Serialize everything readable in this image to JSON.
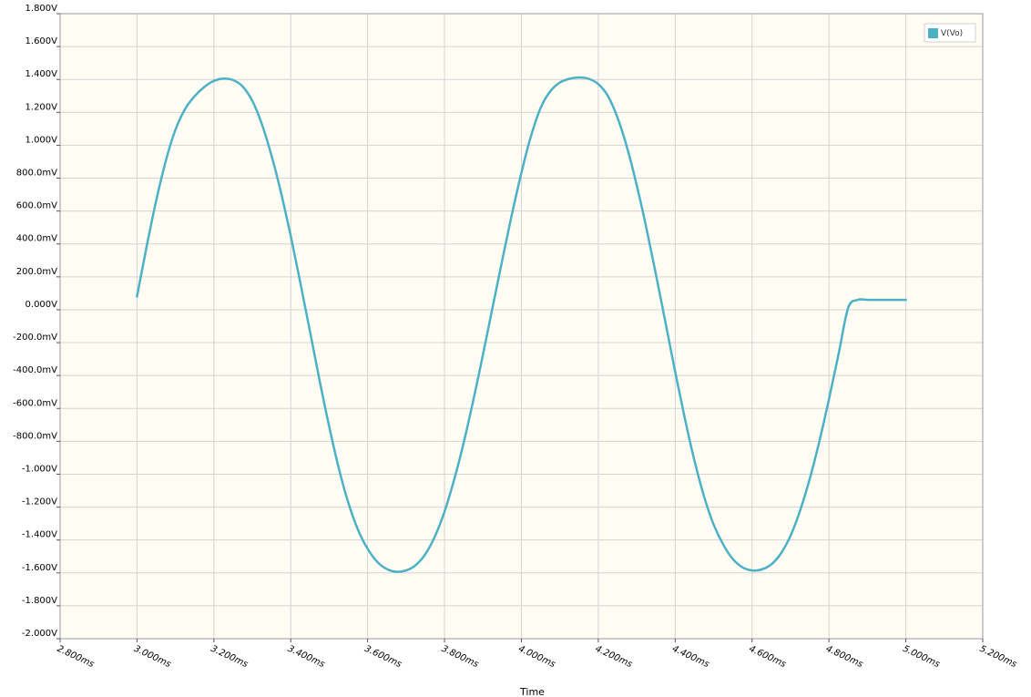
{
  "chart_data": {
    "type": "line",
    "xlabel": "Time",
    "ylabel": "",
    "xlim": [
      2.8,
      5.2
    ],
    "ylim": [
      -2.0,
      1.8
    ],
    "grid": true,
    "legend_position": "top-right",
    "x_ticks": [
      {
        "value": 2.8,
        "label": "2.800ms"
      },
      {
        "value": 3.0,
        "label": "3.000ms"
      },
      {
        "value": 3.2,
        "label": "3.200ms"
      },
      {
        "value": 3.4,
        "label": "3.400ms"
      },
      {
        "value": 3.6,
        "label": "3.600ms"
      },
      {
        "value": 3.8,
        "label": "3.800ms"
      },
      {
        "value": 4.0,
        "label": "4.000ms"
      },
      {
        "value": 4.2,
        "label": "4.200ms"
      },
      {
        "value": 4.4,
        "label": "4.400ms"
      },
      {
        "value": 4.6,
        "label": "4.600ms"
      },
      {
        "value": 4.8,
        "label": "4.800ms"
      },
      {
        "value": 5.0,
        "label": "5.000ms"
      },
      {
        "value": 5.2,
        "label": "5.200ms"
      }
    ],
    "y_ticks": [
      {
        "value": 1.8,
        "label": "1.800V"
      },
      {
        "value": 1.6,
        "label": "1.600V"
      },
      {
        "value": 1.4,
        "label": "1.400V"
      },
      {
        "value": 1.2,
        "label": "1.200V"
      },
      {
        "value": 1.0,
        "label": "1.000V"
      },
      {
        "value": 0.8,
        "label": "800.0mV"
      },
      {
        "value": 0.6,
        "label": "600.0mV"
      },
      {
        "value": 0.4,
        "label": "400.0mV"
      },
      {
        "value": 0.2,
        "label": "200.0mV"
      },
      {
        "value": 0.0,
        "label": "0.000V"
      },
      {
        "value": -0.2,
        "label": "-200.0mV"
      },
      {
        "value": -0.4,
        "label": "-400.0mV"
      },
      {
        "value": -0.6,
        "label": "-600.0mV"
      },
      {
        "value": -0.8,
        "label": "-800.0mV"
      },
      {
        "value": -1.0,
        "label": "-1.000V"
      },
      {
        "value": -1.2,
        "label": "-1.200V"
      },
      {
        "value": -1.4,
        "label": "-1.400V"
      },
      {
        "value": -1.6,
        "label": "-1.600V"
      },
      {
        "value": -1.8,
        "label": "-1.800V"
      },
      {
        "value": -2.0,
        "label": "-2.000V"
      }
    ],
    "series": [
      {
        "name": "V(Vo)",
        "color": "#4bb1c4",
        "x": [
          3.0,
          3.025,
          3.05,
          3.075,
          3.1,
          3.125,
          3.15,
          3.175,
          3.2,
          3.225,
          3.25,
          3.275,
          3.3,
          3.325,
          3.35,
          3.375,
          3.4,
          3.425,
          3.45,
          3.475,
          3.5,
          3.525,
          3.55,
          3.575,
          3.6,
          3.625,
          3.65,
          3.675,
          3.7,
          3.725,
          3.75,
          3.775,
          3.8,
          3.825,
          3.85,
          3.875,
          3.9,
          3.925,
          3.95,
          3.975,
          4.0,
          4.025,
          4.05,
          4.075,
          4.1,
          4.125,
          4.15,
          4.175,
          4.2,
          4.225,
          4.25,
          4.275,
          4.3,
          4.325,
          4.35,
          4.375,
          4.4,
          4.425,
          4.45,
          4.475,
          4.5,
          4.525,
          4.55,
          4.575,
          4.6,
          4.625,
          4.65,
          4.675,
          4.7,
          4.725,
          4.75,
          4.775,
          4.8,
          4.825,
          4.85,
          4.875,
          4.9,
          4.925,
          4.95,
          4.975,
          5.0
        ],
        "values": [
          0.08,
          0.384,
          0.664,
          0.906,
          1.094,
          1.22,
          1.298,
          1.354,
          1.391,
          1.405,
          1.396,
          1.357,
          1.27,
          1.127,
          0.937,
          0.708,
          0.447,
          0.163,
          -0.133,
          -0.43,
          -0.711,
          -0.964,
          -1.176,
          -1.338,
          -1.454,
          -1.533,
          -1.577,
          -1.593,
          -1.585,
          -1.553,
          -1.486,
          -1.378,
          -1.227,
          -1.034,
          -0.806,
          -0.549,
          -0.272,
          0.014,
          0.3,
          0.577,
          0.833,
          1.057,
          1.227,
          1.328,
          1.381,
          1.404,
          1.412,
          1.404,
          1.372,
          1.299,
          1.168,
          0.984,
          0.757,
          0.497,
          0.214,
          -0.081,
          -0.377,
          -0.66,
          -0.916,
          -1.135,
          -1.306,
          -1.428,
          -1.516,
          -1.566,
          -1.585,
          -1.579,
          -1.548,
          -1.482,
          -1.374,
          -1.221,
          -1.028,
          -0.801,
          -0.543,
          -0.27,
          0.012,
          0.06,
          0.06,
          0.06,
          0.06,
          0.06,
          0.06
        ]
      }
    ]
  }
}
